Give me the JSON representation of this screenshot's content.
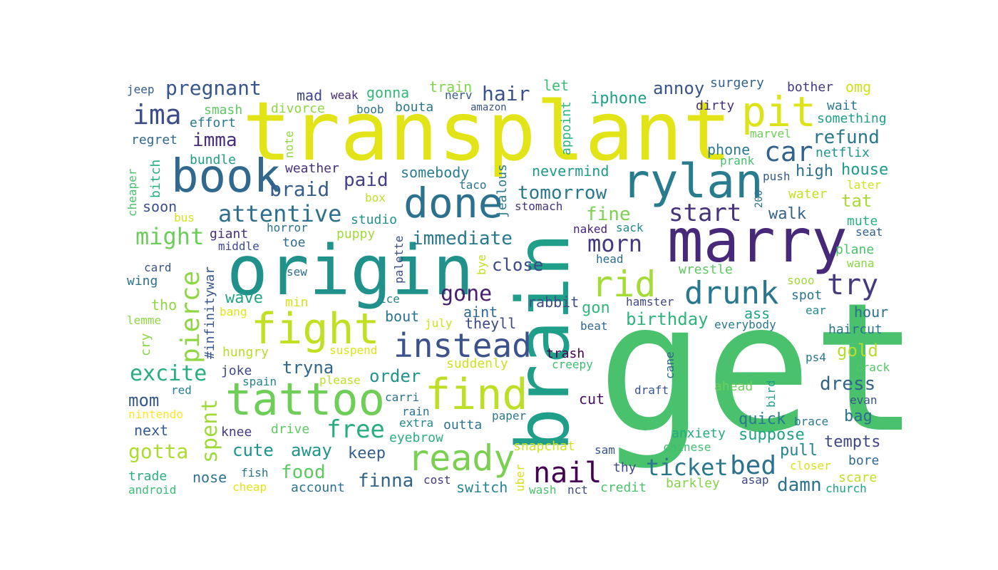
{
  "words": [
    {
      "text": "transplant",
      "color": "#e2e418"
    },
    {
      "text": "get",
      "color": "#4ac16d"
    },
    {
      "text": "brain",
      "color": "#1f9e89"
    },
    {
      "text": "origin",
      "color": "#21918c"
    },
    {
      "text": "marry",
      "color": "#482878"
    },
    {
      "text": "rylan",
      "color": "#287c8e"
    },
    {
      "text": "book",
      "color": "#31688e"
    },
    {
      "text": "tattoo",
      "color": "#6ece58"
    },
    {
      "text": "fight",
      "color": "#c2df23"
    },
    {
      "text": "find",
      "color": "#bddf26"
    },
    {
      "text": "done",
      "color": "#2c728e"
    },
    {
      "text": "pit",
      "color": "#dde318"
    },
    {
      "text": "ready",
      "color": "#7ad151"
    },
    {
      "text": "instead",
      "color": "#3b528b"
    },
    {
      "text": "rid",
      "color": "#a5db36"
    },
    {
      "text": "drunk",
      "color": "#2a788e"
    },
    {
      "text": "nail",
      "color": "#440154"
    },
    {
      "text": "ticket",
      "color": "#2a768e"
    },
    {
      "text": "bed",
      "color": "#2c718e"
    },
    {
      "text": "pierce",
      "color": "#8fd744"
    },
    {
      "text": "attentive",
      "color": "#2e6f8e"
    },
    {
      "text": "ima",
      "color": "#3e4c8a"
    },
    {
      "text": "car",
      "color": "#33638d"
    },
    {
      "text": "try",
      "color": "#443983"
    },
    {
      "text": "morn",
      "color": "#453882"
    },
    {
      "text": "start",
      "color": "#46327e"
    },
    {
      "text": "free",
      "color": "#27ad81"
    },
    {
      "text": "tomorrow",
      "color": "#2a788e"
    },
    {
      "text": "immediate",
      "color": "#2a788e"
    },
    {
      "text": "excite",
      "color": "#26ad81"
    },
    {
      "text": "gone",
      "color": "#481f70"
    },
    {
      "text": "pregnant",
      "color": "#39568c"
    },
    {
      "text": "might",
      "color": "#6ccd5a"
    },
    {
      "text": "spent",
      "color": "#9fda3a"
    },
    {
      "text": "hair",
      "color": "#3b518b"
    },
    {
      "text": "braid",
      "color": "#355e8d"
    },
    {
      "text": "cute",
      "color": "#1f968b"
    },
    {
      "text": "away",
      "color": "#1f958b"
    },
    {
      "text": "gotta",
      "color": "#addc30"
    },
    {
      "text": "food",
      "color": "#5ec962"
    },
    {
      "text": "finna",
      "color": "#32648e"
    },
    {
      "text": "damn",
      "color": "#2c738e"
    },
    {
      "text": "dress",
      "color": "#33638d"
    },
    {
      "text": "refund",
      "color": "#2a788e"
    },
    {
      "text": "imma",
      "color": "#472d7b"
    },
    {
      "text": "paid",
      "color": "#424086"
    },
    {
      "text": "fine",
      "color": "#7cd250"
    },
    {
      "text": "close",
      "color": "#3e4989"
    },
    {
      "text": "tryna",
      "color": "#31678e"
    },
    {
      "text": "order",
      "color": "#1f958b"
    },
    {
      "text": "birthday",
      "color": "#2fb47c"
    },
    {
      "text": "gold",
      "color": "#b5de2b"
    },
    {
      "text": "mom",
      "color": "#38588c"
    },
    {
      "text": "keep",
      "color": "#365d8d"
    },
    {
      "text": "pull",
      "color": "#25858e"
    },
    {
      "text": "tempts",
      "color": "#3f4788"
    },
    {
      "text": "suppose",
      "color": "#1fa187"
    },
    {
      "text": "quick",
      "color": "#297a8e"
    },
    {
      "text": "bag",
      "color": "#2e6e8e"
    },
    {
      "text": "wave",
      "color": "#20a386"
    },
    {
      "text": "high",
      "color": "#2d718e"
    },
    {
      "text": "house",
      "color": "#1f9a8a"
    },
    {
      "text": "walk",
      "color": "#33638d"
    },
    {
      "text": "tat",
      "color": "#a8db34"
    },
    {
      "text": "annoy",
      "color": "#3b528b"
    },
    {
      "text": "iphone",
      "color": "#1fa088"
    },
    {
      "text": "phone",
      "color": "#2a778e"
    },
    {
      "text": "somebody",
      "color": "#277f8e"
    },
    {
      "text": "nevermind",
      "color": "#1f9a8a"
    },
    {
      "text": "gon",
      "color": "#35b779"
    },
    {
      "text": "aint",
      "color": "#31688e"
    },
    {
      "text": "theyll",
      "color": "#3f4889"
    },
    {
      "text": "bout",
      "color": "#2b748e"
    },
    {
      "text": "ass",
      "color": "#1fa188"
    },
    {
      "text": "hour",
      "color": "#2d708e"
    },
    {
      "text": "haircut",
      "color": "#2c728e"
    },
    {
      "text": "mute",
      "color": "#29af7f"
    },
    {
      "text": "plane",
      "color": "#4ac16d"
    },
    {
      "text": "spot",
      "color": "#2c738e"
    },
    {
      "text": "next",
      "color": "#38598c"
    },
    {
      "text": "nose",
      "color": "#2c738e"
    },
    {
      "text": "switch",
      "color": "#25848e"
    },
    {
      "text": "soon",
      "color": "#3d4e8a"
    },
    {
      "text": "giant",
      "color": "#472f7d"
    },
    {
      "text": "joke",
      "color": "#3f4889"
    },
    {
      "text": "mad",
      "color": "#414487"
    },
    {
      "text": "gonna",
      "color": "#35b779"
    },
    {
      "text": "train",
      "color": "#84d44b"
    },
    {
      "text": "let",
      "color": "#3cbb75"
    },
    {
      "text": "omg",
      "color": "#d0e11c"
    },
    {
      "text": "wrestle",
      "color": "#5ec962"
    },
    {
      "text": "rabbit",
      "color": "#3e4c8a"
    },
    {
      "text": "hungry",
      "color": "#b8de29"
    },
    {
      "text": "water",
      "color": "#c8e020"
    },
    {
      "text": "later",
      "color": "#d2e21b"
    },
    {
      "text": "puppy",
      "color": "#a2da37"
    },
    {
      "text": "studio",
      "color": "#21918c"
    },
    {
      "text": "toe",
      "color": "#2f6c8e"
    },
    {
      "text": "middle",
      "color": "#3e4a89"
    },
    {
      "text": "stomach",
      "color": "#463480"
    },
    {
      "text": "horror",
      "color": "#2c728e"
    },
    {
      "text": "weak",
      "color": "#482979"
    },
    {
      "text": "boob",
      "color": "#2c718e"
    },
    {
      "text": "bouta",
      "color": "#2a768e"
    },
    {
      "text": "nerv",
      "color": "#38598c"
    },
    {
      "text": "amazon",
      "color": "#3b518b"
    },
    {
      "text": "surgery",
      "color": "#33628d"
    },
    {
      "text": "bother",
      "color": "#453781"
    },
    {
      "text": "wait",
      "color": "#2a788e"
    },
    {
      "text": "dirty",
      "color": "#46307e"
    },
    {
      "text": "something",
      "color": "#1f9e89"
    },
    {
      "text": "marvel",
      "color": "#6ece58"
    },
    {
      "text": "netflix",
      "color": "#1f968b"
    },
    {
      "text": "prank",
      "color": "#48c16e"
    },
    {
      "text": "push",
      "color": "#38598c"
    },
    {
      "text": "jeep",
      "color": "#365c8d"
    },
    {
      "text": "smash",
      "color": "#5ec962"
    },
    {
      "text": "divorce",
      "color": "#90d743"
    },
    {
      "text": "effort",
      "color": "#2a788e"
    },
    {
      "text": "regret",
      "color": "#31688e"
    },
    {
      "text": "bundle",
      "color": "#1f9e89"
    },
    {
      "text": "weather",
      "color": "#46317e"
    },
    {
      "text": "box",
      "color": "#c0df25"
    },
    {
      "text": "taco",
      "color": "#2c738e"
    },
    {
      "text": "bus",
      "color": "#d8e219"
    },
    {
      "text": "naked",
      "color": "#482576"
    },
    {
      "text": "sack",
      "color": "#23898e"
    },
    {
      "text": "head",
      "color": "#2e6e8e"
    },
    {
      "text": "seat",
      "color": "#33638d"
    },
    {
      "text": "wana",
      "color": "#8bd646"
    },
    {
      "text": "sooo",
      "color": "#9fda3a"
    },
    {
      "text": "ear",
      "color": "#238a8d"
    },
    {
      "text": "card",
      "color": "#3b528b"
    },
    {
      "text": "wing",
      "color": "#2d708e"
    },
    {
      "text": "sew",
      "color": "#2e6e8e"
    },
    {
      "text": "tho",
      "color": "#8fd744"
    },
    {
      "text": "ice",
      "color": "#25848e"
    },
    {
      "text": "min",
      "color": "#d8e219"
    },
    {
      "text": "bang",
      "color": "#e5e419"
    },
    {
      "text": "lemme",
      "color": "#90d743"
    },
    {
      "text": "july",
      "color": "#d2e21b"
    },
    {
      "text": "beat",
      "color": "#31678e"
    },
    {
      "text": "hamster",
      "color": "#3f4788"
    },
    {
      "text": "everybody",
      "color": "#2a788e"
    },
    {
      "text": "suspend",
      "color": "#dde318"
    },
    {
      "text": "suddenly",
      "color": "#d0e11c"
    },
    {
      "text": "trash",
      "color": "#440154"
    },
    {
      "text": "creepy",
      "color": "#3dbc74"
    },
    {
      "text": "ps4",
      "color": "#2a788e"
    },
    {
      "text": "crack",
      "color": "#54c568"
    },
    {
      "text": "please",
      "color": "#bddf26"
    },
    {
      "text": "spain",
      "color": "#25848e"
    },
    {
      "text": "red",
      "color": "#27808e"
    },
    {
      "text": "carri",
      "color": "#2c728e"
    },
    {
      "text": "rain",
      "color": "#2c728e"
    },
    {
      "text": "extra",
      "color": "#24868e"
    },
    {
      "text": "cut",
      "color": "#471063"
    },
    {
      "text": "draft",
      "color": "#3b528b"
    },
    {
      "text": "ahead",
      "color": "#6ccd5a"
    },
    {
      "text": "evan",
      "color": "#39568c"
    },
    {
      "text": "brace",
      "color": "#2a788e"
    },
    {
      "text": "nintendo",
      "color": "#fde725"
    },
    {
      "text": "drive",
      "color": "#5ec962"
    },
    {
      "text": "eyebrow",
      "color": "#29af7f"
    },
    {
      "text": "outta",
      "color": "#2c738e"
    },
    {
      "text": "paper",
      "color": "#2a788e"
    },
    {
      "text": "knee",
      "color": "#443983"
    },
    {
      "text": "anxiety",
      "color": "#25ab82"
    },
    {
      "text": "snapchat",
      "color": "#d2e21b"
    },
    {
      "text": "sam",
      "color": "#3b528b"
    },
    {
      "text": "chinese",
      "color": "#40bd72"
    },
    {
      "text": "trade",
      "color": "#2ab07f"
    },
    {
      "text": "fish",
      "color": "#2c738e"
    },
    {
      "text": "thy",
      "color": "#3e4a89"
    },
    {
      "text": "closer",
      "color": "#d8e219"
    },
    {
      "text": "bore",
      "color": "#31688e"
    },
    {
      "text": "scare",
      "color": "#c2df23"
    },
    {
      "text": "android",
      "color": "#3cbb75"
    },
    {
      "text": "cheap",
      "color": "#e2e418"
    },
    {
      "text": "account",
      "color": "#2c728e"
    },
    {
      "text": "cost",
      "color": "#443983"
    },
    {
      "text": "wash",
      "color": "#4ac16d"
    },
    {
      "text": "nct",
      "color": "#3e4989"
    },
    {
      "text": "credit",
      "color": "#4ac16d"
    },
    {
      "text": "barkley",
      "color": "#84d44b"
    },
    {
      "text": "asap",
      "color": "#3f4788"
    },
    {
      "text": "church",
      "color": "#1fa088"
    },
    {
      "text": "cheaper",
      "color": "#4ac16d"
    },
    {
      "text": "bitch",
      "color": "#26ad81"
    },
    {
      "text": "#infinitywar",
      "color": "#39568c"
    },
    {
      "text": "cry",
      "color": "#8bd646"
    },
    {
      "text": "palette",
      "color": "#3e4a89"
    },
    {
      "text": "bye",
      "color": "#c8e020"
    },
    {
      "text": "jealous",
      "color": "#2a788e"
    },
    {
      "text": "appoint",
      "color": "#2fb47c"
    },
    {
      "text": "note",
      "color": "#90d743"
    },
    {
      "text": "200",
      "color": "#2c718e"
    },
    {
      "text": "cane",
      "color": "#31688e"
    },
    {
      "text": "bird",
      "color": "#1f9e89"
    },
    {
      "text": "uber",
      "color": "#d8e219"
    }
  ]
}
